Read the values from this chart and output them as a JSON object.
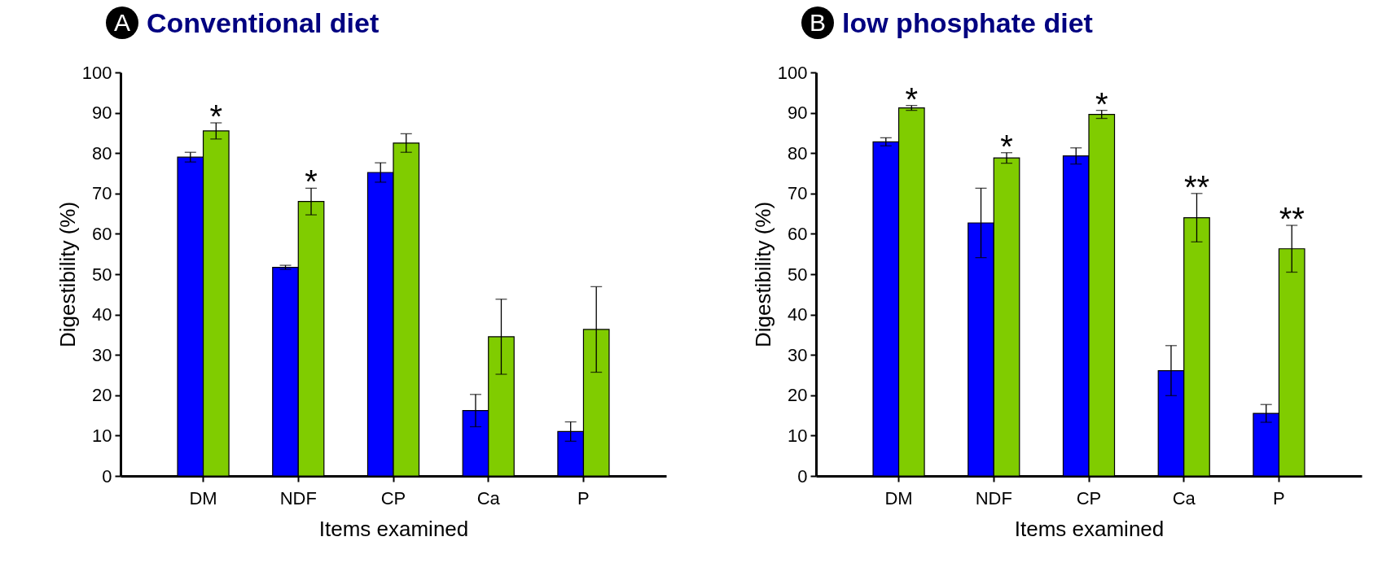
{
  "chart_data": [
    {
      "type": "bar",
      "title": "Conventional diet",
      "annotations": [
        {
          "text": "A"
        },
        {
          "text": "*",
          "x": "DM",
          "y": 85.5
        },
        {
          "text": "*",
          "x": "NDF",
          "y": 68
        }
      ],
      "xlabel": "Items examined",
      "ylabel": "Digestibility (%)",
      "categories": [
        "DM",
        "NDF",
        "CP",
        "Ca",
        "P"
      ],
      "series": [
        {
          "color": "#0000ff",
          "values": [
            79,
            51.7,
            75.2,
            16.2,
            11
          ],
          "errors": [
            1.2,
            0.5,
            2.4,
            4,
            2.4
          ]
        },
        {
          "color": "#80cc00",
          "values": [
            85.5,
            68,
            82.5,
            34.5,
            36.3
          ],
          "errors": [
            2,
            3.3,
            2.3,
            9.3,
            10.6
          ]
        }
      ],
      "ylim": [
        0,
        100
      ],
      "yticks": [
        0,
        10,
        20,
        30,
        40,
        50,
        60,
        70,
        80,
        90,
        100
      ],
      "grid": false,
      "legend": false
    },
    {
      "type": "bar",
      "title": "low phosphate diet",
      "annotations": [
        {
          "text": "B"
        },
        {
          "text": "*",
          "x": "DM",
          "y": 91.2
        },
        {
          "text": "*",
          "x": "NDF",
          "y": 78.8
        },
        {
          "text": "*",
          "x": "CP",
          "y": 89.6
        },
        {
          "text": "**",
          "x": "Ca",
          "y": 64
        },
        {
          "text": "**",
          "x": "P",
          "y": 56.3
        }
      ],
      "xlabel": "Items examined",
      "ylabel": "Digestibility (%)",
      "categories": [
        "DM",
        "NDF",
        "CP",
        "Ca",
        "P"
      ],
      "series": [
        {
          "color": "#0000ff",
          "values": [
            82.8,
            62.7,
            79.3,
            26.1,
            15.5
          ],
          "errors": [
            1,
            8.6,
            2,
            6.2,
            2.2
          ]
        },
        {
          "color": "#80cc00",
          "values": [
            91.2,
            78.8,
            89.6,
            64,
            56.3
          ],
          "errors": [
            0.6,
            1.3,
            1,
            6,
            5.8
          ]
        }
      ],
      "ylim": [
        0,
        100
      ],
      "yticks": [
        0,
        10,
        20,
        30,
        40,
        50,
        60,
        70,
        80,
        90,
        100
      ],
      "grid": false,
      "legend": false
    }
  ]
}
